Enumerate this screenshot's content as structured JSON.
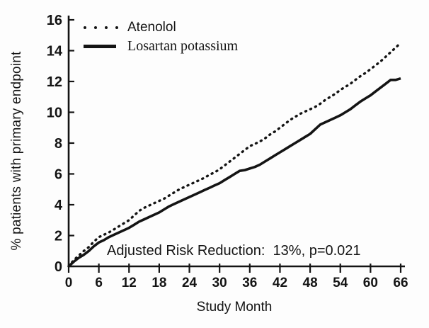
{
  "figure": {
    "y_axis_title": "% patients with primary endpoint",
    "x_axis_title": "Study Month",
    "annotation": "Adjusted Risk Reduction:  13%, p=0.021",
    "legend": {
      "items": [
        {
          "label": "Atenolol",
          "marker": "dotted-line-sample"
        },
        {
          "label": "Losartan potassium",
          "marker": "solid-line-sample"
        }
      ]
    },
    "colors": {
      "ink": "#141414",
      "background": "#fdfdfd"
    }
  },
  "chart_data": {
    "type": "line",
    "title": "",
    "xlabel": "Study Month",
    "ylabel": "% patients with primary endpoint",
    "xlim": [
      0,
      66
    ],
    "ylim": [
      0,
      16
    ],
    "x_ticks": [
      0,
      6,
      12,
      18,
      24,
      30,
      36,
      42,
      48,
      54,
      60,
      66
    ],
    "y_ticks": [
      0,
      2,
      4,
      6,
      8,
      10,
      12,
      14,
      16
    ],
    "grid": false,
    "legend_position": "top-left",
    "annotation": "Adjusted Risk Reduction:  13%, p=0.021",
    "series": [
      {
        "name": "Atenolol",
        "style": "dotted",
        "color": "#141414",
        "points": [
          [
            0,
            0.0
          ],
          [
            1,
            0.4
          ],
          [
            2,
            0.7
          ],
          [
            3,
            1.0
          ],
          [
            4,
            1.25
          ],
          [
            5,
            1.6
          ],
          [
            6,
            1.9
          ],
          [
            7,
            2.05
          ],
          [
            8,
            2.2
          ],
          [
            9,
            2.4
          ],
          [
            10,
            2.6
          ],
          [
            11,
            2.8
          ],
          [
            12,
            3.0
          ],
          [
            13,
            3.3
          ],
          [
            14,
            3.6
          ],
          [
            15,
            3.8
          ],
          [
            16,
            3.95
          ],
          [
            17,
            4.1
          ],
          [
            18,
            4.25
          ],
          [
            19,
            4.4
          ],
          [
            20,
            4.6
          ],
          [
            21,
            4.8
          ],
          [
            22,
            5.0
          ],
          [
            23,
            5.15
          ],
          [
            24,
            5.3
          ],
          [
            25,
            5.45
          ],
          [
            26,
            5.6
          ],
          [
            27,
            5.75
          ],
          [
            28,
            5.95
          ],
          [
            29,
            6.1
          ],
          [
            30,
            6.3
          ],
          [
            31,
            6.55
          ],
          [
            32,
            6.8
          ],
          [
            33,
            7.05
          ],
          [
            34,
            7.3
          ],
          [
            35,
            7.55
          ],
          [
            36,
            7.8
          ],
          [
            37,
            7.95
          ],
          [
            38,
            8.1
          ],
          [
            39,
            8.3
          ],
          [
            40,
            8.55
          ],
          [
            41,
            8.75
          ],
          [
            42,
            9.0
          ],
          [
            43,
            9.25
          ],
          [
            44,
            9.5
          ],
          [
            45,
            9.7
          ],
          [
            46,
            9.9
          ],
          [
            47,
            10.05
          ],
          [
            48,
            10.2
          ],
          [
            49,
            10.35
          ],
          [
            50,
            10.55
          ],
          [
            51,
            10.8
          ],
          [
            52,
            11.0
          ],
          [
            53,
            11.2
          ],
          [
            54,
            11.45
          ],
          [
            55,
            11.65
          ],
          [
            56,
            11.85
          ],
          [
            57,
            12.1
          ],
          [
            58,
            12.35
          ],
          [
            59,
            12.55
          ],
          [
            60,
            12.8
          ],
          [
            61,
            13.05
          ],
          [
            62,
            13.3
          ],
          [
            63,
            13.6
          ],
          [
            64,
            13.9
          ],
          [
            65,
            14.2
          ],
          [
            66,
            14.5
          ]
        ]
      },
      {
        "name": "Losartan potassium",
        "style": "solid",
        "color": "#141414",
        "points": [
          [
            0,
            0.0
          ],
          [
            1,
            0.3
          ],
          [
            2,
            0.55
          ],
          [
            3,
            0.75
          ],
          [
            4,
            1.0
          ],
          [
            5,
            1.3
          ],
          [
            6,
            1.55
          ],
          [
            7,
            1.7
          ],
          [
            8,
            1.9
          ],
          [
            9,
            2.05
          ],
          [
            10,
            2.2
          ],
          [
            11,
            2.35
          ],
          [
            12,
            2.5
          ],
          [
            13,
            2.7
          ],
          [
            14,
            2.9
          ],
          [
            15,
            3.05
          ],
          [
            16,
            3.2
          ],
          [
            17,
            3.35
          ],
          [
            18,
            3.5
          ],
          [
            19,
            3.7
          ],
          [
            20,
            3.9
          ],
          [
            21,
            4.05
          ],
          [
            22,
            4.2
          ],
          [
            23,
            4.35
          ],
          [
            24,
            4.5
          ],
          [
            25,
            4.65
          ],
          [
            26,
            4.8
          ],
          [
            27,
            4.95
          ],
          [
            28,
            5.1
          ],
          [
            29,
            5.25
          ],
          [
            30,
            5.4
          ],
          [
            31,
            5.6
          ],
          [
            32,
            5.8
          ],
          [
            33,
            6.0
          ],
          [
            34,
            6.2
          ],
          [
            35,
            6.25
          ],
          [
            36,
            6.35
          ],
          [
            37,
            6.45
          ],
          [
            38,
            6.6
          ],
          [
            39,
            6.8
          ],
          [
            40,
            7.0
          ],
          [
            41,
            7.2
          ],
          [
            42,
            7.4
          ],
          [
            43,
            7.6
          ],
          [
            44,
            7.8
          ],
          [
            45,
            8.0
          ],
          [
            46,
            8.2
          ],
          [
            47,
            8.4
          ],
          [
            48,
            8.6
          ],
          [
            49,
            8.9
          ],
          [
            50,
            9.2
          ],
          [
            51,
            9.35
          ],
          [
            52,
            9.5
          ],
          [
            53,
            9.65
          ],
          [
            54,
            9.8
          ],
          [
            55,
            10.0
          ],
          [
            56,
            10.2
          ],
          [
            57,
            10.45
          ],
          [
            58,
            10.7
          ],
          [
            59,
            10.9
          ],
          [
            60,
            11.1
          ],
          [
            61,
            11.35
          ],
          [
            62,
            11.6
          ],
          [
            63,
            11.85
          ],
          [
            64,
            12.1
          ],
          [
            65,
            12.1
          ],
          [
            66,
            12.2
          ]
        ]
      }
    ]
  }
}
